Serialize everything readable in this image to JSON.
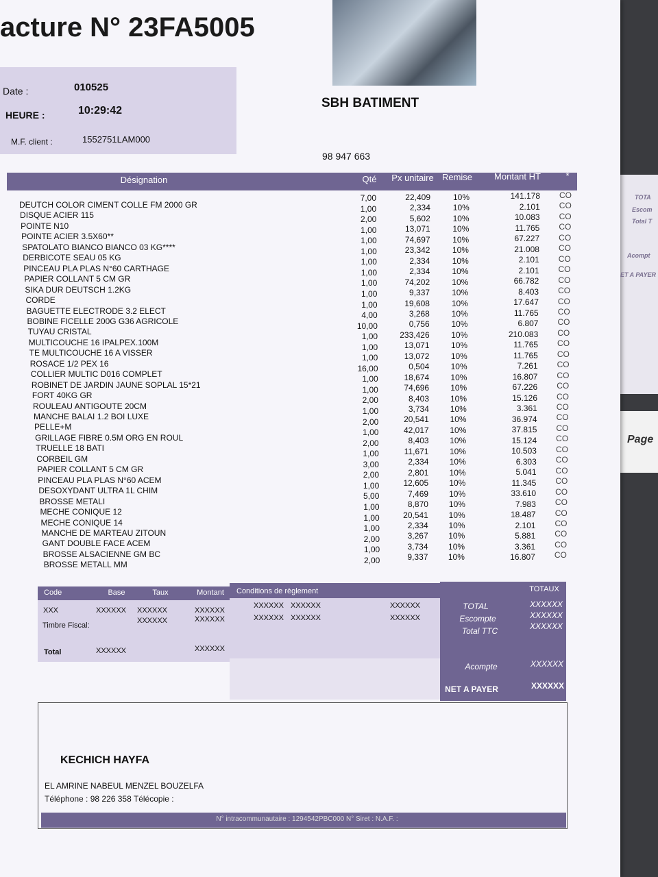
{
  "header": {
    "title": "acture N° 23FA5005",
    "date_label": "Date :",
    "date": "010525",
    "time_label": "HEURE :",
    "time": "10:29:42",
    "mf_label": "M.F. client :",
    "mf": "1552751LAM000",
    "company": "SBH BATIMENT",
    "phone": "98 947 663"
  },
  "table": {
    "columns": [
      "Désignation",
      "Qté",
      "Px unitaire",
      "Remise",
      "Montant HT",
      "*"
    ],
    "rows": [
      [
        "DEUTCH COLOR CIMENT COLLE FM 2000 GR",
        "7,00",
        "22,409",
        "10%",
        "141.178",
        "CO"
      ],
      [
        "DISQUE  ACIER 115",
        "1,00",
        "2,334",
        "10%",
        "2.101",
        "CO"
      ],
      [
        "POINTE N10",
        "2,00",
        "5,602",
        "10%",
        "10.083",
        "CO"
      ],
      [
        "POINTE ACIER 3.5X60**",
        "1,00",
        "13,071",
        "10%",
        "11.765",
        "CO"
      ],
      [
        "SPATOLATO BIANCO BIANCO 03 KG****",
        "1,00",
        "74,697",
        "10%",
        "67.227",
        "CO"
      ],
      [
        "DERBICOTE SEAU  05 KG",
        "1,00",
        "23,342",
        "10%",
        "21.008",
        "CO"
      ],
      [
        "PINCEAU PLA PLAS N°60 CARTHAGE",
        "1,00",
        "2,334",
        "10%",
        "2.101",
        "CO"
      ],
      [
        "PAPIER COLLANT 5 CM GR",
        "1,00",
        "2,334",
        "10%",
        "2.101",
        "CO"
      ],
      [
        "SIKA DUR DEUTSCH 1.2KG",
        "1,00",
        "74,202",
        "10%",
        "66.782",
        "CO"
      ],
      [
        "CORDE",
        "1,00",
        "9,337",
        "10%",
        "8.403",
        "CO"
      ],
      [
        "BAGUETTE ELECTRODE 3.2 ELECT",
        "1,00",
        "19,608",
        "10%",
        "17.647",
        "CO"
      ],
      [
        "BOBINE FICELLE 200G G36 AGRICOLE",
        "4,00",
        "3,268",
        "10%",
        "11.765",
        "CO"
      ],
      [
        "TUYAU CRISTAL",
        "10,00",
        "0,756",
        "10%",
        "6.807",
        "CO"
      ],
      [
        "MULTICOUCHE 16 IPALPEX.100M",
        "1,00",
        "233,426",
        "10%",
        "210.083",
        "CO"
      ],
      [
        "TE MULTICOUCHE 16 A VISSER",
        "1,00",
        "13,071",
        "10%",
        "11.765",
        "CO"
      ],
      [
        "ROSACE 1/2  PEX 16",
        "1,00",
        "13,072",
        "10%",
        "11.765",
        "CO"
      ],
      [
        "COLLIER MULTIC D016 COMPLET",
        "16,00",
        "0,504",
        "10%",
        "7.261",
        "CO"
      ],
      [
        "ROBINET DE JARDIN JAUNE SOPLAL 15*21",
        "1,00",
        "18,674",
        "10%",
        "16.807",
        "CO"
      ],
      [
        "FORT 40KG GR",
        "1,00",
        "74,696",
        "10%",
        "67.226",
        "CO"
      ],
      [
        "ROULEAU ANTIGOUTE 20CM",
        "2,00",
        "8,403",
        "10%",
        "15.126",
        "CO"
      ],
      [
        "MANCHE BALAI 1.2 BOI LUXE",
        "1,00",
        "3,734",
        "10%",
        "3.361",
        "CO"
      ],
      [
        "PELLE+M",
        "2,00",
        "20,541",
        "10%",
        "36.974",
        "CO"
      ],
      [
        "GRILLAGE FIBRE 0.5M ORG EN ROUL",
        "1,00",
        "42,017",
        "10%",
        "37.815",
        "CO"
      ],
      [
        "TRUELLE 18 BATI",
        "2,00",
        "8,403",
        "10%",
        "15.124",
        "CO"
      ],
      [
        "CORBEIL GM",
        "1,00",
        "11,671",
        "10%",
        "10.503",
        "CO"
      ],
      [
        "PAPIER COLLANT 5 CM GR",
        "3,00",
        "2,334",
        "10%",
        "6.303",
        "CO"
      ],
      [
        "PINCEAU PLA PLAS N°60 ACEM",
        "2,00",
        "2,801",
        "10%",
        "5.041",
        "CO"
      ],
      [
        "DESOXYDANT ULTRA 1L  CHIM",
        "1,00",
        "12,605",
        "10%",
        "11.345",
        "CO"
      ],
      [
        "BROSSE METALI",
        "5,00",
        "7,469",
        "10%",
        "33.610",
        "CO"
      ],
      [
        "MECHE CONIQUE 12",
        "1,00",
        "8,870",
        "10%",
        "7.983",
        "CO"
      ],
      [
        "MECHE CONIQUE 14",
        "1,00",
        "20,541",
        "10%",
        "18.487",
        "CO"
      ],
      [
        "MANCHE DE MARTEAU ZITOUN",
        "1,00",
        "2,334",
        "10%",
        "2.101",
        "CO"
      ],
      [
        "GANT DOUBLE FACE ACEM",
        "2,00",
        "3,267",
        "10%",
        "5.881",
        "CO"
      ],
      [
        "BROSSE ALSACIENNE GM BC",
        "1,00",
        "3,734",
        "10%",
        "3.361",
        "CO"
      ],
      [
        "BROSSE METALL  MM",
        "2,00",
        "9,337",
        "10%",
        "16.807",
        "CO"
      ]
    ]
  },
  "taxes": {
    "columns": [
      "Code",
      "Base",
      "Taux",
      "Montant"
    ],
    "row": [
      "XXX",
      "XXXXXX",
      "XXXXXX",
      "XXXXXX"
    ],
    "fiscal_label": "Timbre Fiscal:",
    "fiscal": [
      "XXXXXX",
      "XXXXXX"
    ],
    "total_label": "Total",
    "total": [
      "XXXXXX",
      "XXXXXX"
    ]
  },
  "conditions": {
    "title": "Conditions de règlement",
    "rows": [
      [
        "XXXXXX",
        "XXXXXX",
        "XXXXXX"
      ],
      [
        "XXXXXX",
        "XXXXXX",
        "XXXXXX"
      ]
    ]
  },
  "totals": {
    "title": "TOTAUX",
    "lines": [
      {
        "label": "TOTAL",
        "value": "XXXXXX"
      },
      {
        "label": "Escompte",
        "value": "XXXXXX"
      },
      {
        "label": "Total TTC",
        "value": "XXXXXX"
      }
    ],
    "acompte": {
      "label": "Acompte",
      "value": "XXXXXX"
    },
    "net": {
      "label": "NET A PAYER",
      "value": "XXXXXX"
    }
  },
  "client": {
    "name": "KECHICH HAYFA",
    "address": "EL AMRINE NABEUL MENZEL BOUZELFA",
    "phone": "Téléphone : 98 226 358 Télécopie :",
    "footer": "N° intracommunautaire : 1294542PBC000 N° Siret : N.A.F. :"
  },
  "background": {
    "texts": [
      "TOTA",
      "Escom",
      "Total T",
      "Acompt",
      "ET A PAYER",
      "Page"
    ]
  }
}
